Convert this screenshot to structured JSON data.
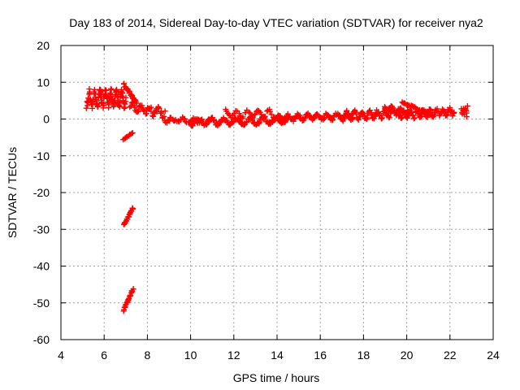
{
  "chart_data": {
    "type": "scatter",
    "title": "Day 183 of 2014, Sidereal Day-to-day VTEC variation (SDTVAR) for receiver nya2",
    "xlabel": "GPS time / hours",
    "ylabel": "SDTVAR / TECUs",
    "xlim": [
      4,
      24
    ],
    "ylim": [
      -60,
      20
    ],
    "xticks": [
      "4",
      "6",
      "8",
      "10",
      "12",
      "14",
      "16",
      "18",
      "20",
      "22",
      "24"
    ],
    "yticks": [
      "20",
      "10",
      "0",
      "-10",
      "-20",
      "-30",
      "-40",
      "-50",
      "-60"
    ],
    "grid": true,
    "marker": "+",
    "color": "#ff0000",
    "series": [
      {
        "name": "SDTVAR",
        "segments": [
          {
            "x0": 5.2,
            "x1": 7.0,
            "base": 5.5,
            "slope": 0,
            "amp": 1.8,
            "period": 0.25,
            "noise": 2.0,
            "count": 130
          },
          {
            "x0": 6.9,
            "x1": 7.5,
            "base": 9.5,
            "slope": -8.5,
            "amp": 0,
            "period": 1,
            "noise": 0.6,
            "count": 24
          },
          {
            "x0": 6.9,
            "x1": 7.3,
            "base": -5.5,
            "slope": 4.0,
            "amp": 0,
            "period": 1,
            "noise": 0.4,
            "count": 10
          },
          {
            "x0": 6.9,
            "x1": 7.35,
            "base": -29.0,
            "slope": 11.0,
            "amp": 0,
            "period": 1,
            "noise": 0.6,
            "count": 22
          },
          {
            "x0": 6.9,
            "x1": 7.35,
            "base": -52.0,
            "slope": 13.0,
            "amp": 0,
            "period": 1,
            "noise": 0.6,
            "count": 24
          },
          {
            "x0": 7.2,
            "x1": 8.8,
            "base": 3.5,
            "slope": -1.2,
            "amp": 1.0,
            "period": 0.4,
            "noise": 1.6,
            "count": 46
          },
          {
            "x0": 8.8,
            "x1": 10.5,
            "base": -0.3,
            "slope": 0,
            "amp": 0.5,
            "period": 0.5,
            "noise": 0.8,
            "count": 34
          },
          {
            "x0": 10.0,
            "x1": 14.5,
            "base": -0.8,
            "slope": 0.1,
            "amp": 0.8,
            "period": 0.6,
            "noise": 0.9,
            "count": 150
          },
          {
            "x0": 11.6,
            "x1": 13.8,
            "base": 1.4,
            "slope": 0,
            "amp": 1.0,
            "period": 0.5,
            "noise": 0.7,
            "count": 40
          },
          {
            "x0": 14.0,
            "x1": 17.5,
            "base": 0.3,
            "slope": 0.15,
            "amp": 0.7,
            "period": 0.45,
            "noise": 0.8,
            "count": 110
          },
          {
            "x0": 17.0,
            "x1": 19.3,
            "base": 0.8,
            "slope": 0.3,
            "amp": 1.0,
            "period": 0.35,
            "noise": 0.9,
            "count": 80
          },
          {
            "x0": 19.0,
            "x1": 20.2,
            "base": 3.0,
            "slope": -1.2,
            "amp": 0.6,
            "period": 0.4,
            "noise": 0.7,
            "count": 40
          },
          {
            "x0": 19.8,
            "x1": 21.2,
            "base": 4.5,
            "slope": -2.5,
            "amp": 0,
            "period": 1,
            "noise": 0.5,
            "count": 30
          },
          {
            "x0": 19.5,
            "x1": 22.2,
            "base": 1.0,
            "slope": 0.4,
            "amp": 0.8,
            "period": 0.3,
            "noise": 0.9,
            "count": 100
          },
          {
            "x0": 22.55,
            "x1": 22.8,
            "base": 2.2,
            "slope": 0,
            "amp": 1.0,
            "period": 0.1,
            "noise": 1.6,
            "count": 14
          }
        ]
      }
    ]
  }
}
